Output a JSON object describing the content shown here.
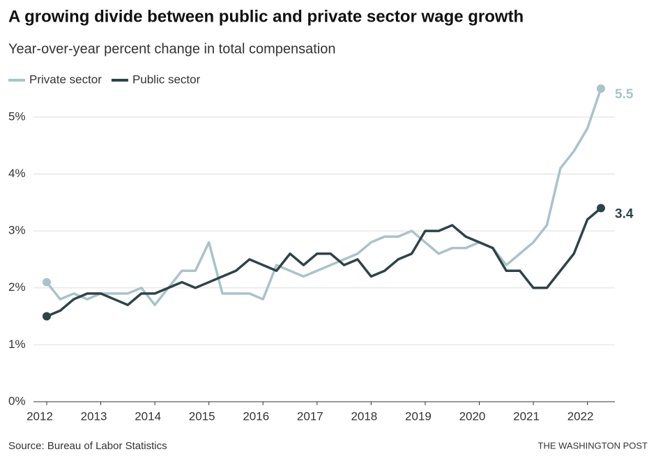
{
  "chart_data": {
    "type": "line",
    "title": "A growing divide between public and private sector wage growth",
    "subtitle": "Year-over-year percent change in total compensation",
    "source": "Source: Bureau of Labor Statistics",
    "credit": "THE WASHINGTON POST",
    "legend": "top-left",
    "grid": true,
    "categories": [
      "2012",
      null,
      null,
      null,
      "2013",
      null,
      null,
      null,
      "2014",
      null,
      null,
      null,
      "2015",
      null,
      null,
      null,
      "2016",
      null,
      null,
      null,
      "2017",
      null,
      null,
      null,
      "2018",
      null,
      null,
      null,
      "2019",
      null,
      null,
      null,
      "2020",
      null,
      null,
      null,
      "2021",
      null,
      null,
      null,
      "2022",
      null
    ],
    "series": [
      {
        "name": "Private sector",
        "color": "#a9c3c9",
        "values": [
          2.1,
          1.8,
          1.9,
          1.8,
          1.9,
          1.9,
          1.9,
          2.0,
          1.7,
          2.0,
          2.3,
          2.3,
          2.8,
          1.9,
          1.9,
          1.9,
          1.8,
          2.4,
          2.3,
          2.2,
          2.3,
          2.4,
          2.5,
          2.6,
          2.8,
          2.9,
          2.9,
          3.0,
          2.8,
          2.6,
          2.7,
          2.7,
          2.8,
          2.7,
          2.4,
          2.6,
          2.8,
          3.1,
          4.1,
          4.4,
          4.8,
          5.5
        ]
      },
      {
        "name": "Public sector",
        "color": "#2d4449",
        "values": [
          1.5,
          1.6,
          1.8,
          1.9,
          1.9,
          1.8,
          1.7,
          1.9,
          1.9,
          2.0,
          2.1,
          2.0,
          2.1,
          2.2,
          2.3,
          2.5,
          2.4,
          2.3,
          2.6,
          2.4,
          2.6,
          2.6,
          2.4,
          2.5,
          2.2,
          2.3,
          2.5,
          2.6,
          3.0,
          3.0,
          3.1,
          2.9,
          2.8,
          2.7,
          2.3,
          2.3,
          2.0,
          2.0,
          2.3,
          2.6,
          3.2,
          3.4
        ]
      }
    ],
    "ylim": [
      0,
      5.5
    ],
    "yticks": [
      {
        "value": 0,
        "label": "0%"
      },
      {
        "value": 1,
        "label": "1%"
      },
      {
        "value": 2,
        "label": "2%"
      },
      {
        "value": 3,
        "label": "3%"
      },
      {
        "value": 4,
        "label": "4%"
      },
      {
        "value": 5,
        "label": "5%"
      }
    ]
  }
}
